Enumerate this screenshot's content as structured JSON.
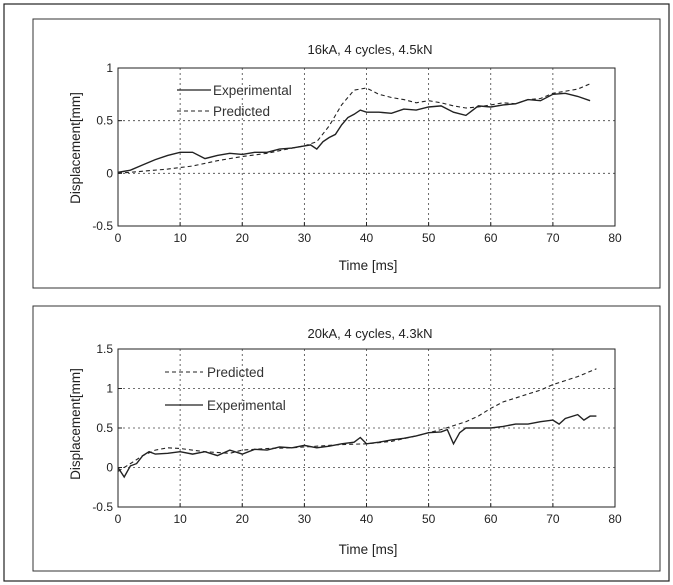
{
  "chart_data": [
    {
      "type": "line",
      "title": "16kA, 4 cycles, 4.5kN",
      "xlabel": "Time [ms]",
      "ylabel": "Displacement[mm]",
      "xlim": [
        0,
        80
      ],
      "ylim": [
        -0.5,
        1
      ],
      "xticks": [
        "0",
        "10",
        "20",
        "30",
        "40",
        "50",
        "60",
        "70",
        "80"
      ],
      "yticks": [
        "-0.5",
        "0",
        "0.5",
        "1"
      ],
      "grid": true,
      "legend_position": "top-left",
      "series": [
        {
          "name": "Experimental",
          "style": "solid",
          "x": [
            0,
            2,
            4,
            6,
            8,
            10,
            12,
            14,
            16,
            18,
            20,
            22,
            24,
            26,
            28,
            30,
            31,
            32,
            33,
            34,
            35,
            36,
            37,
            38,
            39,
            40,
            42,
            44,
            46,
            48,
            50,
            52,
            54,
            56,
            58,
            60,
            62,
            64,
            66,
            68,
            70,
            72,
            74,
            76
          ],
          "y": [
            0.01,
            0.03,
            0.08,
            0.13,
            0.17,
            0.2,
            0.2,
            0.14,
            0.17,
            0.19,
            0.18,
            0.2,
            0.2,
            0.23,
            0.24,
            0.26,
            0.27,
            0.23,
            0.3,
            0.34,
            0.37,
            0.46,
            0.53,
            0.56,
            0.6,
            0.58,
            0.58,
            0.57,
            0.61,
            0.6,
            0.63,
            0.64,
            0.58,
            0.55,
            0.64,
            0.63,
            0.65,
            0.66,
            0.7,
            0.69,
            0.75,
            0.76,
            0.73,
            0.69
          ]
        },
        {
          "name": "Predicted",
          "style": "dashed",
          "x": [
            0,
            4,
            8,
            12,
            16,
            20,
            24,
            28,
            30,
            32,
            34,
            36,
            38,
            40,
            42,
            44,
            46,
            48,
            50,
            52,
            54,
            56,
            58,
            60,
            62,
            64,
            66,
            68,
            70,
            72,
            74,
            76
          ],
          "y": [
            0,
            0.02,
            0.04,
            0.07,
            0.12,
            0.16,
            0.19,
            0.24,
            0.26,
            0.3,
            0.45,
            0.65,
            0.79,
            0.81,
            0.75,
            0.72,
            0.7,
            0.67,
            0.69,
            0.67,
            0.64,
            0.62,
            0.63,
            0.65,
            0.67,
            0.66,
            0.7,
            0.71,
            0.76,
            0.78,
            0.8,
            0.85
          ]
        }
      ]
    },
    {
      "type": "line",
      "title": "20kA, 4 cycles, 4.3kN",
      "xlabel": "Time [ms]",
      "ylabel": "Displacement[mm]",
      "xlim": [
        0,
        80
      ],
      "ylim": [
        -0.5,
        1.5
      ],
      "xticks": [
        "0",
        "10",
        "20",
        "30",
        "40",
        "50",
        "60",
        "70",
        "80"
      ],
      "yticks": [
        "-0.5",
        "0",
        "0.5",
        "1",
        "1.5"
      ],
      "grid": true,
      "legend_position": "top-left",
      "series": [
        {
          "name": "Predicted",
          "style": "dashed",
          "x": [
            0,
            1,
            2,
            4,
            6,
            8,
            10,
            14,
            18,
            20,
            24,
            28,
            32,
            36,
            40,
            44,
            48,
            52,
            56,
            58,
            60,
            62,
            64,
            66,
            68,
            70,
            72,
            74,
            77
          ],
          "y": [
            -0.05,
            0,
            0.05,
            0.15,
            0.22,
            0.25,
            0.24,
            0.2,
            0.18,
            0.22,
            0.24,
            0.25,
            0.27,
            0.29,
            0.3,
            0.33,
            0.4,
            0.48,
            0.58,
            0.65,
            0.75,
            0.83,
            0.88,
            0.93,
            0.98,
            1.05,
            1.1,
            1.15,
            1.25
          ]
        },
        {
          "name": "Experimental",
          "style": "solid",
          "x": [
            0,
            1,
            2,
            3,
            4,
            5,
            6,
            8,
            10,
            12,
            14,
            16,
            18,
            20,
            22,
            24,
            26,
            28,
            30,
            32,
            34,
            36,
            38,
            39,
            40,
            42,
            44,
            46,
            48,
            50,
            52,
            53,
            54,
            55,
            56,
            58,
            60,
            62,
            64,
            66,
            68,
            70,
            71,
            72,
            74,
            75,
            76,
            77
          ],
          "y": [
            0,
            -0.12,
            0.02,
            0.05,
            0.15,
            0.2,
            0.17,
            0.18,
            0.2,
            0.17,
            0.2,
            0.15,
            0.22,
            0.17,
            0.23,
            0.22,
            0.26,
            0.25,
            0.28,
            0.25,
            0.27,
            0.3,
            0.32,
            0.38,
            0.3,
            0.32,
            0.35,
            0.37,
            0.4,
            0.44,
            0.45,
            0.48,
            0.3,
            0.44,
            0.5,
            0.5,
            0.5,
            0.52,
            0.55,
            0.55,
            0.58,
            0.6,
            0.55,
            0.62,
            0.67,
            0.6,
            0.65,
            0.65
          ]
        }
      ]
    }
  ]
}
